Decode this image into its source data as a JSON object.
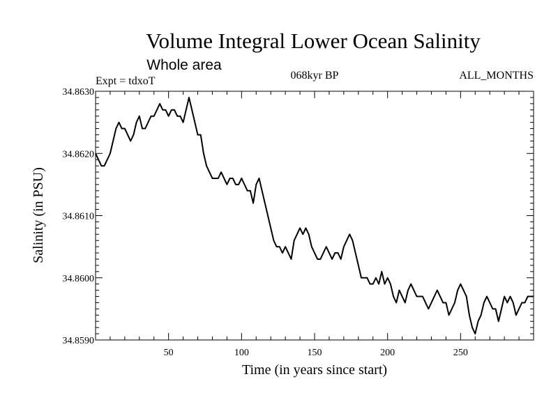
{
  "header": {
    "title": "Volume Integral Lower Ocean Salinity",
    "subtitle": "Whole area",
    "experiment": "Expt = tdxoT",
    "period": "068kyr BP",
    "months": "ALL_MONTHS"
  },
  "chart_data": {
    "type": "line",
    "title": "Volume Integral Lower Ocean Salinity",
    "subtitle": "Whole area",
    "xlabel": "Time (in years since start)",
    "ylabel": "Salinity (in PSU)",
    "xlim": [
      0,
      300
    ],
    "ylim": [
      34.859,
      34.863
    ],
    "xticks": [
      50,
      100,
      150,
      200,
      250
    ],
    "xtick_labels": [
      "50",
      "100",
      "150",
      "200",
      "250"
    ],
    "yticks": [
      34.859,
      34.86,
      34.861,
      34.862,
      34.863
    ],
    "ytick_labels": [
      "34.8590",
      "34.8600",
      "34.8610",
      "34.8620",
      "34.8630"
    ],
    "grid": false,
    "series": [
      {
        "color": "#000000",
        "x": [
          0,
          2,
          4,
          6,
          8,
          10,
          12,
          14,
          16,
          18,
          20,
          22,
          24,
          26,
          28,
          30,
          32,
          34,
          36,
          38,
          40,
          42,
          44,
          46,
          48,
          50,
          52,
          54,
          56,
          58,
          60,
          62,
          64,
          66,
          68,
          70,
          72,
          74,
          76,
          78,
          80,
          82,
          84,
          86,
          88,
          90,
          92,
          94,
          96,
          98,
          100,
          102,
          104,
          106,
          108,
          110,
          112,
          114,
          116,
          118,
          120,
          122,
          124,
          126,
          128,
          130,
          132,
          134,
          136,
          138,
          140,
          142,
          144,
          146,
          148,
          150,
          152,
          154,
          156,
          158,
          160,
          162,
          164,
          166,
          168,
          170,
          172,
          174,
          176,
          178,
          180,
          182,
          184,
          186,
          188,
          190,
          192,
          194,
          196,
          198,
          200,
          202,
          204,
          206,
          208,
          210,
          212,
          214,
          216,
          218,
          220,
          222,
          224,
          226,
          228,
          230,
          232,
          234,
          236,
          238,
          240,
          242,
          244,
          246,
          248,
          250,
          252,
          254,
          256,
          258,
          260,
          262,
          264,
          266,
          268,
          270,
          272,
          274,
          276,
          278,
          280,
          282,
          284,
          286,
          288,
          290,
          292,
          294,
          296,
          298,
          300
        ],
        "y": [
          34.862,
          34.8619,
          34.8618,
          34.8618,
          34.8619,
          34.862,
          34.8622,
          34.8624,
          34.8625,
          34.8624,
          34.8624,
          34.8623,
          34.8622,
          34.8623,
          34.8625,
          34.8626,
          34.8624,
          34.8624,
          34.8625,
          34.8626,
          34.8626,
          34.8627,
          34.8628,
          34.8627,
          34.8627,
          34.8626,
          34.8627,
          34.8627,
          34.8626,
          34.8626,
          34.8625,
          34.8627,
          34.8629,
          34.8627,
          34.8625,
          34.8623,
          34.8623,
          34.862,
          34.8618,
          34.8617,
          34.8616,
          34.8616,
          34.8616,
          34.8617,
          34.8616,
          34.8615,
          34.8616,
          34.8616,
          34.8615,
          34.8615,
          34.8616,
          34.8615,
          34.8614,
          34.8614,
          34.8612,
          34.8615,
          34.8616,
          34.8614,
          34.8612,
          34.861,
          34.8608,
          34.8606,
          34.8605,
          34.8605,
          34.8604,
          34.8605,
          34.8604,
          34.8603,
          34.8606,
          34.8607,
          34.8608,
          34.8607,
          34.8608,
          34.8607,
          34.8605,
          34.8604,
          34.8603,
          34.8603,
          34.8604,
          34.8605,
          34.8604,
          34.8603,
          34.8604,
          34.8604,
          34.8603,
          34.8605,
          34.8606,
          34.8607,
          34.8606,
          34.8604,
          34.8602,
          34.86,
          34.86,
          34.86,
          34.8599,
          34.8599,
          34.86,
          34.8599,
          34.8601,
          34.8599,
          34.86,
          34.8599,
          34.8597,
          34.8596,
          34.8598,
          34.8597,
          34.8596,
          34.8598,
          34.8599,
          34.8598,
          34.8597,
          34.8597,
          34.8597,
          34.8596,
          34.8595,
          34.8596,
          34.8597,
          34.8598,
          34.8597,
          34.8596,
          34.8596,
          34.8594,
          34.8595,
          34.8596,
          34.8598,
          34.8599,
          34.8598,
          34.8597,
          34.8594,
          34.8592,
          34.8591,
          34.8593,
          34.8594,
          34.8596,
          34.8597,
          34.8596,
          34.8595,
          34.8595,
          34.8593,
          34.8595,
          34.8597,
          34.8596,
          34.8597,
          34.8596,
          34.8594,
          34.8595,
          34.8596,
          34.8596,
          34.8597,
          34.8597,
          34.8597
        ]
      }
    ]
  }
}
